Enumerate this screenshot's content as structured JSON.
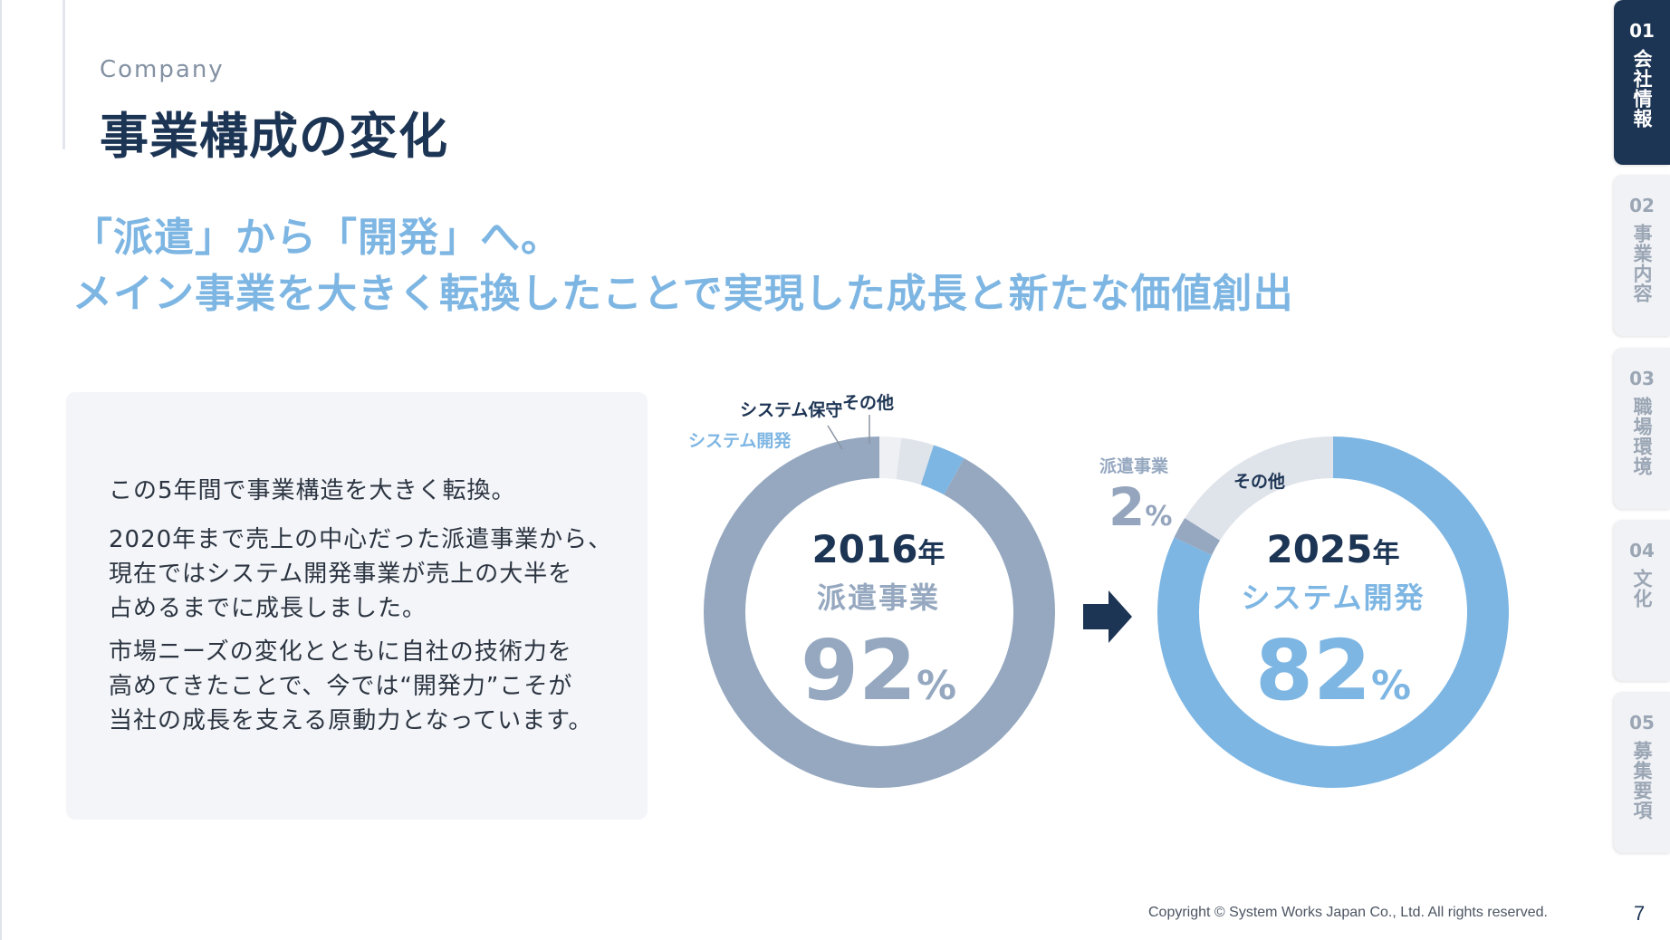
{
  "header": {
    "section_label": "Company",
    "title": "事業構成の変化"
  },
  "headline": {
    "line1": "「派遣」から「開発」へ。",
    "line2": "メイン事業を大きく転換したことで実現した成長と新たな価値創出"
  },
  "panel": {
    "p1": "この5年間で事業構造を大きく転換。",
    "p2_line1": "2020年まで売上の中心だった派遣事業から、",
    "p2_line2": "現在ではシステム開発事業が売上の大半を",
    "p2_line3": "占めるまでに成長しました。",
    "p3_line1": "市場ニーズの変化とともに自社の技術力を",
    "p3_line2": "高めてきたことで、今では“開発力”こそが",
    "p3_line3": "当社の成長を支える原動力となっています。"
  },
  "chart_data": [
    {
      "type": "pie",
      "variant": "donut",
      "center": {
        "year": "2016",
        "year_unit": "年",
        "business": "派遣事業",
        "percent": "92",
        "percent_unit": "%"
      },
      "slices": [
        {
          "label": "派遣事業",
          "value": 92,
          "color": "#95a8c0"
        },
        {
          "label": "システム開発",
          "value": 3,
          "color": "#7eb6e3"
        },
        {
          "label": "システム保守",
          "value": 3,
          "color": "#dfe3ea"
        },
        {
          "label": "その他",
          "value": 2,
          "color": "#eef0f4"
        }
      ]
    },
    {
      "type": "pie",
      "variant": "donut",
      "center": {
        "year": "2025",
        "year_unit": "年",
        "business": "システム開発",
        "percent": "82",
        "percent_unit": "%"
      },
      "slices": [
        {
          "label": "システム開発",
          "value": 82,
          "color": "#7eb6e3"
        },
        {
          "label": "派遣事業",
          "value": 2,
          "color": "#95a8c0",
          "callout_percent": "2",
          "callout_unit": "%"
        },
        {
          "label": "その他",
          "value": 16,
          "color": "#dfe3ea"
        }
      ]
    }
  ],
  "colors": {
    "navy": "#1d3554",
    "light_blue": "#7eb6e3",
    "gray_blue": "#95a8c0"
  },
  "nav": {
    "tabs": [
      {
        "num": "01",
        "label": "会社情報",
        "active": true
      },
      {
        "num": "02",
        "label": "事業内容",
        "active": false
      },
      {
        "num": "03",
        "label": "職場環境",
        "active": false
      },
      {
        "num": "04",
        "label": "文化",
        "active": false
      },
      {
        "num": "05",
        "label": "募集要項",
        "active": false
      }
    ]
  },
  "footer": {
    "copyright": "Copyright © System Works Japan Co., Ltd. All rights reserved.",
    "page_number": "7"
  }
}
